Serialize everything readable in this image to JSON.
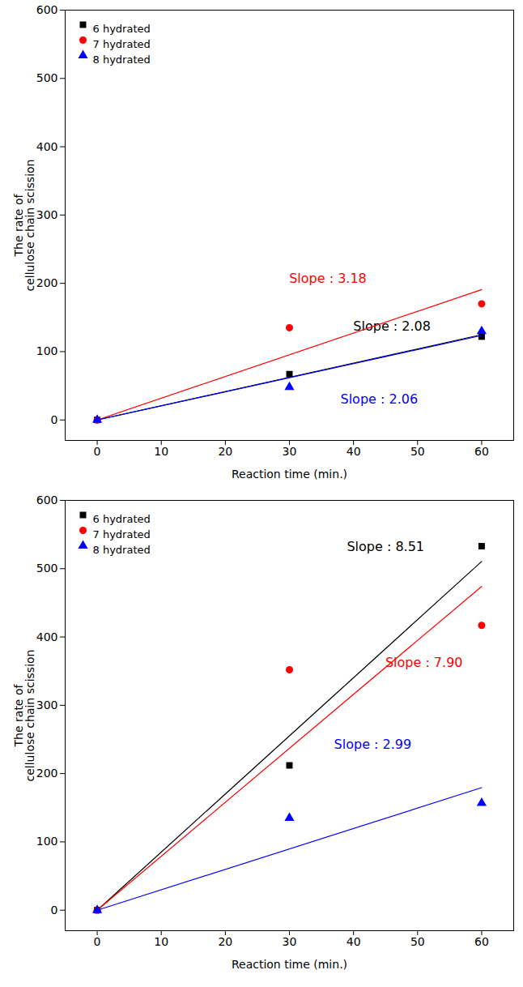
{
  "chart_data": [
    {
      "type": "scatter",
      "x_label": "Reaction time (min.)",
      "y_label": "The rate of\ncellulose chain scission",
      "x": [
        0,
        30,
        60
      ],
      "xlim": [
        -5,
        65
      ],
      "xticks": [
        0,
        10,
        20,
        30,
        40,
        50,
        60
      ],
      "ylim": [
        -30,
        600
      ],
      "yticks": [
        0,
        100,
        200,
        300,
        400,
        500,
        600
      ],
      "legend": "upper left",
      "series": [
        {
          "name": "6 hydrated",
          "color": "#000000",
          "marker": "square",
          "values": [
            0,
            67,
            122
          ],
          "slope": 2.08,
          "annotation": "Slope : 2.08"
        },
        {
          "name": "7 hydrated",
          "color": "#ff0000",
          "marker": "circle",
          "values": [
            0,
            135,
            170
          ],
          "slope": 3.18,
          "annotation": "Slope : 3.18"
        },
        {
          "name": "8 hydrated",
          "color": "#0000ff",
          "marker": "triangle",
          "values": [
            0,
            48,
            130
          ],
          "slope": 2.06,
          "annotation": "Slope : 2.06"
        }
      ]
    },
    {
      "type": "scatter",
      "x_label": "Reaction time (min.)",
      "y_label": "The rate of\ncellulose chain scission",
      "x": [
        0,
        30,
        60
      ],
      "xlim": [
        -5,
        65
      ],
      "xticks": [
        0,
        10,
        20,
        30,
        40,
        50,
        60
      ],
      "ylim": [
        -30,
        600
      ],
      "yticks": [
        0,
        100,
        200,
        300,
        400,
        500,
        600
      ],
      "legend": "upper left",
      "series": [
        {
          "name": "6 hydrated",
          "color": "#000000",
          "marker": "square",
          "values": [
            0,
            212,
            533
          ],
          "slope": 8.51,
          "annotation": "Slope : 8.51"
        },
        {
          "name": "7 hydrated",
          "color": "#ff0000",
          "marker": "circle",
          "values": [
            0,
            352,
            417
          ],
          "slope": 7.9,
          "annotation": "Slope : 7.90"
        },
        {
          "name": "8 hydrated",
          "color": "#0000ff",
          "marker": "triangle",
          "values": [
            0,
            135,
            157
          ],
          "slope": 2.99,
          "annotation": "Slope : 2.99"
        }
      ]
    }
  ]
}
